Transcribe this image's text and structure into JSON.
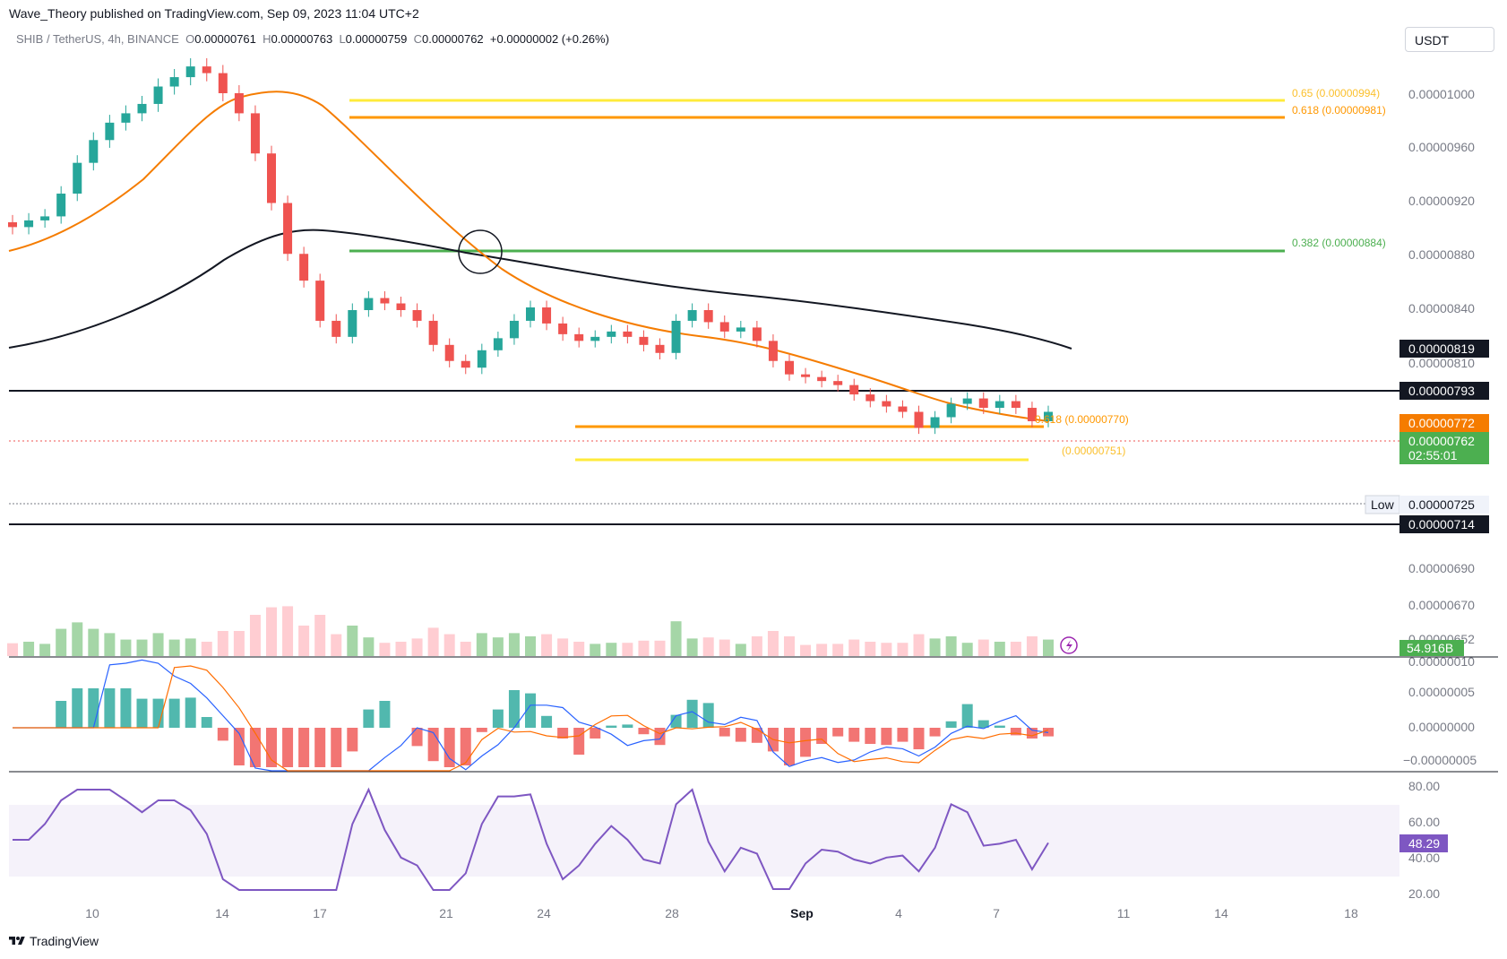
{
  "header": {
    "published": "Wave_Theory published on TradingView.com, Sep 09, 2023 11:04 UTC+2"
  },
  "symbol_line": {
    "name": "SHIB / TetherUS, 4h, BINANCE",
    "o_label": "O",
    "o_value": "0.00000761",
    "h_label": "H",
    "h_value": "0.00000763",
    "l_label": "L",
    "l_value": "0.00000759",
    "c_label": "C",
    "c_value": "0.00000762",
    "change": "+0.00000002 (+0.26%)"
  },
  "currency": "USDT",
  "footer": {
    "brand": "TradingView"
  },
  "price_axis": {
    "ticks": [
      "0.00001000",
      "0.00000960",
      "0.00000920",
      "0.00000880",
      "0.00000840",
      "0.00000810",
      "0.00000690",
      "0.00000670",
      "0.00000652"
    ],
    "labels": {
      "l819": "0.00000819",
      "l793": "0.00000793",
      "l772": "0.00000772",
      "l762": "0.00000762",
      "countdown": "02:55:01",
      "low_tag": "Low",
      "l725": "0.00000725",
      "l714": "0.00000714",
      "volume": "54.916B"
    },
    "colors": {
      "ema200": "#131722",
      "ema50": "#f57c00",
      "price": "#4caf50",
      "volume": "#4caf50"
    }
  },
  "fib_labels": {
    "f65": "0.65 (0.00000994)",
    "f618_top": "0.618 (0.00000981)",
    "f382": "0.382 (0.00000884)",
    "f618_low": "0.618 (0.00000770)",
    "f_low": "(0.00000751)"
  },
  "macd_axis": [
    "0.00000010",
    "0.00000005",
    "0.00000000",
    "−0.00000005"
  ],
  "rsi_axis": [
    "80.00",
    "60.00",
    "40.00",
    "20.00"
  ],
  "rsi_value": "48.29",
  "time_axis": [
    "10",
    "14",
    "17",
    "21",
    "24",
    "28",
    "Sep",
    "4",
    "7",
    "11",
    "14",
    "18"
  ],
  "chart_data": {
    "type": "candlestick",
    "interval": "4h",
    "symbol": "SHIB / TetherUS",
    "y_axis_prices": [
      1e-05,
      9.6e-06,
      9.2e-06,
      8.8e-06,
      8.4e-06,
      8.1e-06
    ],
    "closes": [
      9e-06,
      9.05e-06,
      9.08e-06,
      9.25e-06,
      9.48e-06,
      9.65e-06,
      9.78e-06,
      9.85e-06,
      9.92e-06,
      1.005e-05,
      1.012e-05,
      1.02e-05,
      1.015e-05,
      1e-05,
      9.85e-06,
      9.55e-06,
      9.18e-06,
      8.8e-06,
      8.6e-06,
      8.3e-06,
      8.18e-06,
      8.38e-06,
      8.47e-06,
      8.43e-06,
      8.38e-06,
      8.3e-06,
      8.12e-06,
      8e-06,
      7.95e-06,
      8.08e-06,
      8.17e-06,
      8.3e-06,
      8.4e-06,
      8.28e-06,
      8.2e-06,
      8.15e-06,
      8.18e-06,
      8.22e-06,
      8.18e-06,
      8.12e-06,
      8.06e-06,
      8.3e-06,
      8.38e-06,
      8.29e-06,
      8.22e-06,
      8.25e-06,
      8.15e-06,
      8e-06,
      7.9e-06,
      7.88e-06,
      7.85e-06,
      7.82e-06,
      7.75e-06,
      7.7e-06,
      7.66e-06,
      7.62e-06,
      7.5e-06,
      7.58e-06,
      7.68e-06,
      7.72e-06,
      7.65e-06,
      7.7e-06,
      7.65e-06,
      7.55e-06,
      7.62e-06
    ],
    "fib_levels": [
      {
        "ratio": "0.65",
        "price": 9.94e-06
      },
      {
        "ratio": "0.618",
        "price": 9.81e-06
      },
      {
        "ratio": "0.382",
        "price": 8.84e-06
      },
      {
        "ratio": "0.618",
        "price": 7.7e-06
      },
      {
        "ratio": "",
        "price": 7.51e-06
      }
    ],
    "horizontal_levels": [
      7.93e-06,
      7.14e-06
    ],
    "ema50_last": 7.72e-06,
    "ema200_last": 8.19e-06,
    "last_price": 7.62e-06,
    "low": 7.25e-06,
    "volume_last": "54.916B",
    "rsi_last": 48.29,
    "rsi_band": [
      30,
      70
    ]
  }
}
